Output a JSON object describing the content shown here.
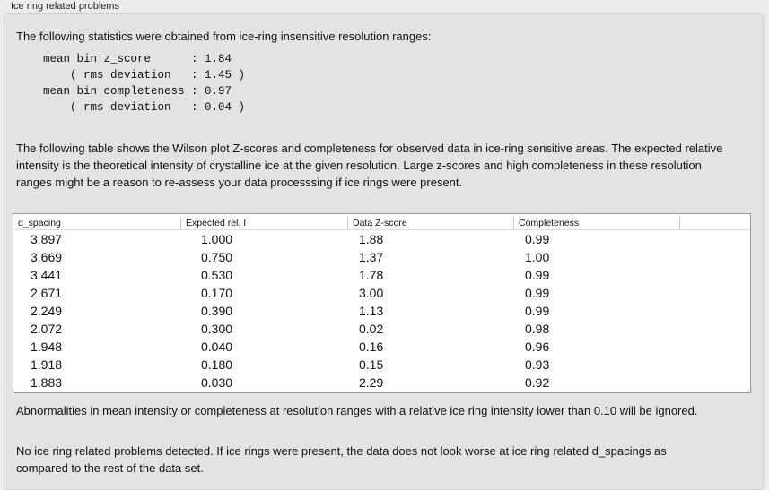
{
  "group_title": "Ice ring related problems",
  "intro": "The following statistics were obtained from ice-ring insensitive resolution ranges:",
  "stats_lines": [
    "mean bin z_score      : 1.84",
    "    ( rms deviation   : 1.45 )",
    "mean bin completeness : 0.97",
    "    ( rms deviation   : 0.04 )"
  ],
  "table_description": "The following table shows the Wilson plot Z-scores and completeness for observed data in ice-ring sensitive areas. The expected relative intensity is the theoretical intensity of crystalline ice at the given resolution. Large z-scores and high completeness in these resolution ranges might be a reason to re-assess your data processsing if ice rings were present.",
  "table": {
    "columns": [
      "d_spacing",
      "Expected rel. I",
      "Data Z-score",
      "Completeness"
    ],
    "rows": [
      [
        "3.897",
        "1.000",
        "1.88",
        "0.99"
      ],
      [
        "3.669",
        "0.750",
        "1.37",
        "1.00"
      ],
      [
        "3.441",
        "0.530",
        "1.78",
        "0.99"
      ],
      [
        "2.671",
        "0.170",
        "3.00",
        "0.99"
      ],
      [
        "2.249",
        "0.390",
        "1.13",
        "0.99"
      ],
      [
        "2.072",
        "0.300",
        "0.02",
        "0.98"
      ],
      [
        "1.948",
        "0.040",
        "0.16",
        "0.96"
      ],
      [
        "1.918",
        "0.180",
        "0.15",
        "0.93"
      ],
      [
        "1.883",
        "0.030",
        "2.29",
        "0.92"
      ]
    ]
  },
  "note": "Abnormalities in mean intensity or completeness at resolution ranges with a relative ice ring intensity lower than 0.10 will be ignored.",
  "conclusion": "No ice ring related problems detected. If ice rings were present, the data does not look worse at ice ring related d_spacings as compared to the rest of the data set."
}
